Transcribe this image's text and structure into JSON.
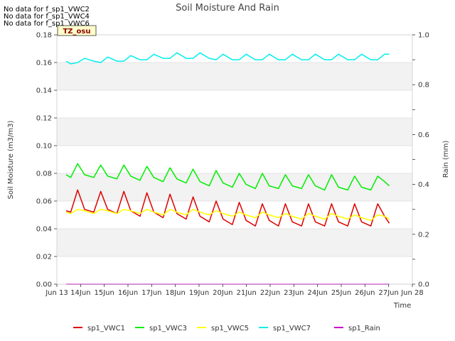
{
  "notes": [
    "No data for f_sp1_VWC2",
    "No data for f_sp1_VWC4",
    "No data for f_sp1_VWC6"
  ],
  "chart_data": {
    "type": "line",
    "title": "Soil Moisture And Rain",
    "xlabel": "Time",
    "ylabel": "Soil Moisture (m3/m3)",
    "y2label": "Rain (mm)",
    "site_label": "TZ_osu",
    "grid": "horizontal bands",
    "legend_position": "bottom",
    "xlim": [
      "Jun 13",
      "Jun 28"
    ],
    "x_ticks": [
      "Jun 13",
      "14Jun",
      "15Jun",
      "16Jun",
      "17Jun",
      "18Jun",
      "19Jun",
      "20Jun",
      "21Jun",
      "22Jun",
      "23Jun",
      "24Jun",
      "25Jun",
      "26Jun",
      "27Jun",
      "Jun 28"
    ],
    "ylim": [
      0.0,
      0.18
    ],
    "y_ticks": [
      "0.00",
      "0.02",
      "0.04",
      "0.06",
      "0.08",
      "0.10",
      "0.12",
      "0.14",
      "0.16",
      "0.18"
    ],
    "y2lim": [
      0.0,
      1.0
    ],
    "y2_ticks": [
      "0.0",
      "0.2",
      "0.4",
      "0.6",
      "0.8",
      "1.0"
    ],
    "x_range_days": [
      13.0,
      27.5
    ],
    "series": [
      {
        "name": "sp1_VWC1",
        "color": "#dd0000",
        "axis": "left",
        "x": [
          13.0,
          13.2,
          13.5,
          13.8,
          14.2,
          14.5,
          14.8,
          15.2,
          15.5,
          15.8,
          16.2,
          16.5,
          16.8,
          17.2,
          17.5,
          17.8,
          18.2,
          18.5,
          18.8,
          19.2,
          19.5,
          19.8,
          20.2,
          20.5,
          20.8,
          21.2,
          21.5,
          21.8,
          22.2,
          22.5,
          22.8,
          23.2,
          23.5,
          23.8,
          24.2,
          24.5,
          24.8,
          25.2,
          25.5,
          25.8,
          26.2,
          26.5,
          26.8,
          27.0
        ],
        "y": [
          0.053,
          0.052,
          0.068,
          0.054,
          0.052,
          0.067,
          0.054,
          0.051,
          0.067,
          0.053,
          0.049,
          0.066,
          0.052,
          0.048,
          0.065,
          0.051,
          0.047,
          0.063,
          0.049,
          0.045,
          0.06,
          0.047,
          0.043,
          0.059,
          0.046,
          0.042,
          0.058,
          0.046,
          0.042,
          0.058,
          0.045,
          0.042,
          0.058,
          0.045,
          0.042,
          0.058,
          0.045,
          0.042,
          0.058,
          0.045,
          0.042,
          0.058,
          0.049,
          0.044
        ]
      },
      {
        "name": "sp1_VWC3",
        "color": "#00ee00",
        "axis": "left",
        "x": [
          13.0,
          13.2,
          13.5,
          13.8,
          14.2,
          14.5,
          14.8,
          15.2,
          15.5,
          15.8,
          16.2,
          16.5,
          16.8,
          17.2,
          17.5,
          17.8,
          18.2,
          18.5,
          18.8,
          19.2,
          19.5,
          19.8,
          20.2,
          20.5,
          20.8,
          21.2,
          21.5,
          21.8,
          22.2,
          22.5,
          22.8,
          23.2,
          23.5,
          23.8,
          24.2,
          24.5,
          24.8,
          25.2,
          25.5,
          25.8,
          26.2,
          26.5,
          26.8,
          27.0
        ],
        "y": [
          0.079,
          0.077,
          0.087,
          0.079,
          0.077,
          0.086,
          0.078,
          0.076,
          0.086,
          0.078,
          0.075,
          0.085,
          0.077,
          0.074,
          0.084,
          0.076,
          0.073,
          0.083,
          0.074,
          0.071,
          0.082,
          0.073,
          0.07,
          0.08,
          0.072,
          0.069,
          0.08,
          0.071,
          0.069,
          0.079,
          0.071,
          0.069,
          0.079,
          0.071,
          0.068,
          0.079,
          0.07,
          0.068,
          0.078,
          0.07,
          0.068,
          0.078,
          0.074,
          0.071
        ]
      },
      {
        "name": "sp1_VWC5",
        "color": "#ffff00",
        "axis": "left",
        "x": [
          13.0,
          13.2,
          13.5,
          13.8,
          14.2,
          14.5,
          14.8,
          15.2,
          15.5,
          15.8,
          16.2,
          16.5,
          16.8,
          17.2,
          17.5,
          17.8,
          18.2,
          18.5,
          18.8,
          19.2,
          19.5,
          19.8,
          20.2,
          20.5,
          20.8,
          21.2,
          21.5,
          21.8,
          22.2,
          22.5,
          22.8,
          23.2,
          23.5,
          23.8,
          24.2,
          24.5,
          24.8,
          25.2,
          25.5,
          25.8,
          26.2,
          26.5,
          26.8,
          27.0
        ],
        "y": [
          0.052,
          0.051,
          0.054,
          0.053,
          0.051,
          0.054,
          0.053,
          0.051,
          0.054,
          0.053,
          0.051,
          0.054,
          0.052,
          0.05,
          0.054,
          0.052,
          0.05,
          0.054,
          0.052,
          0.05,
          0.053,
          0.051,
          0.049,
          0.052,
          0.05,
          0.048,
          0.052,
          0.05,
          0.048,
          0.051,
          0.049,
          0.047,
          0.051,
          0.049,
          0.047,
          0.051,
          0.049,
          0.047,
          0.05,
          0.048,
          0.046,
          0.05,
          0.049,
          0.047
        ]
      },
      {
        "name": "sp1_VWC7",
        "color": "#00eeee",
        "axis": "left",
        "x": [
          13.0,
          13.2,
          13.5,
          13.8,
          14.2,
          14.5,
          14.8,
          15.2,
          15.5,
          15.8,
          16.2,
          16.5,
          16.8,
          17.2,
          17.5,
          17.8,
          18.2,
          18.5,
          18.8,
          19.2,
          19.5,
          19.8,
          20.2,
          20.5,
          20.8,
          21.2,
          21.5,
          21.8,
          22.2,
          22.5,
          22.8,
          23.2,
          23.5,
          23.8,
          24.2,
          24.5,
          24.8,
          25.2,
          25.5,
          25.8,
          26.2,
          26.5,
          26.8,
          27.0
        ],
        "y": [
          0.161,
          0.159,
          0.16,
          0.163,
          0.161,
          0.16,
          0.164,
          0.161,
          0.161,
          0.165,
          0.162,
          0.162,
          0.166,
          0.163,
          0.163,
          0.167,
          0.163,
          0.163,
          0.167,
          0.163,
          0.162,
          0.166,
          0.162,
          0.162,
          0.166,
          0.162,
          0.162,
          0.166,
          0.162,
          0.162,
          0.166,
          0.162,
          0.162,
          0.166,
          0.162,
          0.162,
          0.166,
          0.162,
          0.162,
          0.166,
          0.162,
          0.162,
          0.166,
          0.166
        ]
      },
      {
        "name": "sp1_Rain",
        "color": "#cc00cc",
        "axis": "right",
        "x": [
          13.0,
          27.0
        ],
        "y": [
          0.0,
          0.0
        ]
      }
    ]
  }
}
